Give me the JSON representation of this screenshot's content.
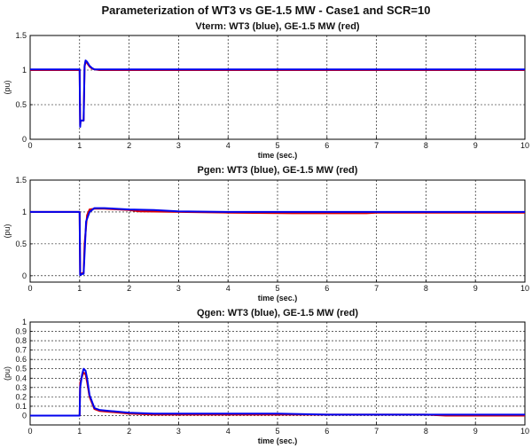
{
  "page": {
    "title": "Parameterization of WT3 vs GE-1.5 MW - Case1 and SCR=10"
  },
  "colors": {
    "wt3": "#0000ee",
    "ge": "#dd0000",
    "background": "#ffffff"
  },
  "chart_data": [
    {
      "type": "line",
      "title": "Vterm: WT3 (blue), GE-1.5 MW (red)",
      "xlabel": "time (sec.)",
      "ylabel": "(pu)",
      "xlim": [
        0,
        10
      ],
      "ylim": [
        0,
        1.5
      ],
      "xticks": [
        "0",
        "1",
        "2",
        "3",
        "4",
        "5",
        "6",
        "7",
        "8",
        "9",
        "10"
      ],
      "yticks": [
        "0",
        "0.5",
        "1",
        "1.5"
      ],
      "grid": true,
      "series": [
        {
          "color": "#dd0000",
          "x": [
            0,
            1.0,
            1.01,
            1.02,
            1.05,
            1.08,
            1.1,
            1.12,
            1.15,
            1.2,
            1.25,
            1.3,
            1.4,
            10
          ],
          "y": [
            1.0,
            1.0,
            0.2,
            0.27,
            0.27,
            0.27,
            1.05,
            1.12,
            1.1,
            1.05,
            1.02,
            1.01,
            1.0,
            1.0
          ]
        },
        {
          "color": "#0000ee",
          "x": [
            0,
            1.0,
            1.01,
            1.02,
            1.05,
            1.08,
            1.1,
            1.12,
            1.15,
            1.2,
            1.25,
            1.3,
            1.4,
            10
          ],
          "y": [
            1.01,
            1.01,
            0.18,
            0.27,
            0.27,
            0.27,
            1.06,
            1.14,
            1.12,
            1.06,
            1.03,
            1.01,
            1.01,
            1.01
          ]
        }
      ]
    },
    {
      "type": "line",
      "title": "Pgen: WT3 (blue), GE-1.5 MW (red)",
      "xlabel": "time (sec.)",
      "ylabel": "(pu)",
      "xlim": [
        0,
        10
      ],
      "ylim": [
        -0.1,
        1.5
      ],
      "xticks": [
        "0",
        "1",
        "2",
        "3",
        "4",
        "5",
        "6",
        "7",
        "8",
        "9",
        "10"
      ],
      "yticks": [
        "0",
        "0.5",
        "1",
        "1.5"
      ],
      "grid": true,
      "series": [
        {
          "color": "#dd0000",
          "x": [
            0,
            1.0,
            1.01,
            1.05,
            1.08,
            1.1,
            1.15,
            1.2,
            1.3,
            1.5,
            2.0,
            2.2,
            3.0,
            4.0,
            5.3,
            6.8,
            7.0,
            9.0,
            10
          ],
          "y": [
            1.0,
            1.0,
            0.02,
            0.04,
            0.04,
            0.5,
            0.95,
            1.04,
            1.05,
            1.05,
            1.03,
            1.01,
            1.0,
            0.99,
            0.98,
            0.98,
            0.99,
            0.99,
            0.99
          ]
        },
        {
          "color": "#0000ee",
          "x": [
            0,
            1.0,
            1.01,
            1.05,
            1.08,
            1.1,
            1.13,
            1.2,
            1.3,
            1.5,
            2.0,
            2.5,
            3.0,
            4.0,
            5.0,
            6.0,
            7.0,
            8.0,
            10
          ],
          "y": [
            1.0,
            1.0,
            0.01,
            0.03,
            0.03,
            0.35,
            0.85,
            1.0,
            1.06,
            1.06,
            1.04,
            1.03,
            1.01,
            1.0,
            1.0,
            1.0,
            1.0,
            1.0,
            1.0
          ]
        }
      ]
    },
    {
      "type": "line",
      "title": "Qgen: WT3 (blue), GE-1.5 MW (red)",
      "xlabel": "time (sec.)",
      "ylabel": "(pu)",
      "xlim": [
        0,
        10
      ],
      "ylim": [
        -0.1,
        1.0
      ],
      "xticks": [
        "0",
        "1",
        "2",
        "3",
        "4",
        "5",
        "6",
        "7",
        "8",
        "9",
        "10"
      ],
      "yticks": [
        "0",
        "0.1",
        "0.2",
        "0.3",
        "0.4",
        "0.5",
        "0.6",
        "0.7",
        "0.8",
        "0.9",
        "1"
      ],
      "grid": true,
      "series": [
        {
          "color": "#dd0000",
          "x": [
            0,
            1.0,
            1.01,
            1.05,
            1.08,
            1.12,
            1.15,
            1.2,
            1.3,
            1.4,
            1.6,
            2.0,
            2.5,
            3.0,
            5.0,
            6.0,
            8.0,
            8.4,
            10
          ],
          "y": [
            0.0,
            0.0,
            0.35,
            0.42,
            0.46,
            0.44,
            0.36,
            0.2,
            0.07,
            0.05,
            0.04,
            0.02,
            0.01,
            0.01,
            0.01,
            0.01,
            0.01,
            0.0,
            0.0
          ]
        },
        {
          "color": "#0000ee",
          "x": [
            0,
            1.0,
            1.01,
            1.05,
            1.08,
            1.12,
            1.15,
            1.2,
            1.3,
            1.4,
            1.6,
            2.0,
            2.5,
            3.0,
            4.0,
            5.0,
            6.0,
            8.0,
            10
          ],
          "y": [
            0.0,
            0.0,
            0.3,
            0.44,
            0.5,
            0.48,
            0.4,
            0.22,
            0.08,
            0.06,
            0.05,
            0.03,
            0.02,
            0.02,
            0.02,
            0.02,
            0.01,
            0.01,
            0.01
          ]
        }
      ]
    }
  ]
}
